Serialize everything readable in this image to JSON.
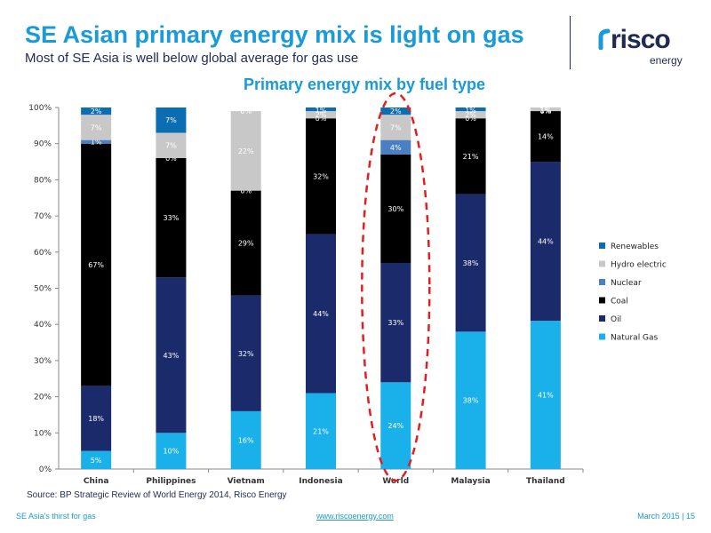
{
  "header": {
    "title": "SE Asian primary energy mix is light on gas",
    "subtitle": "Most of SE Asia is well below global average for gas use"
  },
  "logo": {
    "word": "risco",
    "sub": "energy"
  },
  "chart_data": {
    "type": "bar",
    "stacked": true,
    "title": "Primary energy mix by fuel type",
    "categories": [
      "China",
      "Philippines",
      "Vietnam",
      "Indonesia",
      "World",
      "Malaysia",
      "Thailand"
    ],
    "ylim": [
      0,
      100
    ],
    "yticks": [
      "0%",
      "10%",
      "20%",
      "30%",
      "40%",
      "50%",
      "60%",
      "70%",
      "80%",
      "90%",
      "100%"
    ],
    "series": [
      {
        "name": "Natural Gas",
        "color": "#1ab0ea",
        "values": [
          5,
          10,
          16,
          21,
          24,
          38,
          41
        ],
        "labels": [
          "5%",
          "10%",
          "16%",
          "21%",
          "24%",
          "38%",
          "41%"
        ],
        "label_color": "#ffffff"
      },
      {
        "name": "Oil",
        "color": "#1b2a6b",
        "values": [
          18,
          43,
          32,
          44,
          33,
          38,
          44
        ],
        "labels": [
          "18%",
          "43%",
          "32%",
          "44%",
          "33%",
          "38%",
          "44%"
        ],
        "label_color": "#ffffff"
      },
      {
        "name": "Coal",
        "color": "#000000",
        "values": [
          67,
          33,
          29,
          32,
          30,
          21,
          14
        ],
        "labels": [
          "67%",
          "33%",
          "29%",
          "32%",
          "30%",
          "21%",
          "14%"
        ],
        "label_color": "#ffffff"
      },
      {
        "name": "Nuclear",
        "color": "#4a7fc1",
        "values": [
          1,
          0,
          0,
          0,
          4,
          0,
          0
        ],
        "labels": [
          "1%",
          "0%",
          "0%",
          "0%",
          "4%",
          "0%",
          "0%"
        ],
        "label_color": "#ffffff"
      },
      {
        "name": "Hydro electric",
        "color": "#c8c8c8",
        "values": [
          7,
          7,
          22,
          2,
          7,
          2,
          1
        ],
        "labels": [
          "7%",
          "7%",
          "22%",
          "2%",
          "7%",
          "2%",
          "1%"
        ],
        "label_color": "#ffffff"
      },
      {
        "name": "Renewables",
        "color": "#0b6db3",
        "values": [
          2,
          7,
          0,
          1,
          2,
          1,
          1
        ],
        "labels": [
          "2%",
          "7%",
          "0%",
          "1%",
          "2%",
          "1%",
          "1%"
        ],
        "label_color": "#ffffff"
      }
    ],
    "legend": "right",
    "legend_order": [
      "Renewables",
      "Hydro electric",
      "Nuclear",
      "Coal",
      "Oil",
      "Natural Gas"
    ],
    "highlight": {
      "category": "World",
      "color": "#e02020"
    },
    "grid": false
  },
  "source": "Source: BP Strategic Review of World Energy 2014, Risco Energy",
  "footer": {
    "left": "SE Asia's thirst for gas",
    "center": "www.riscoenergy.com",
    "right": "March 2015  |  15"
  }
}
